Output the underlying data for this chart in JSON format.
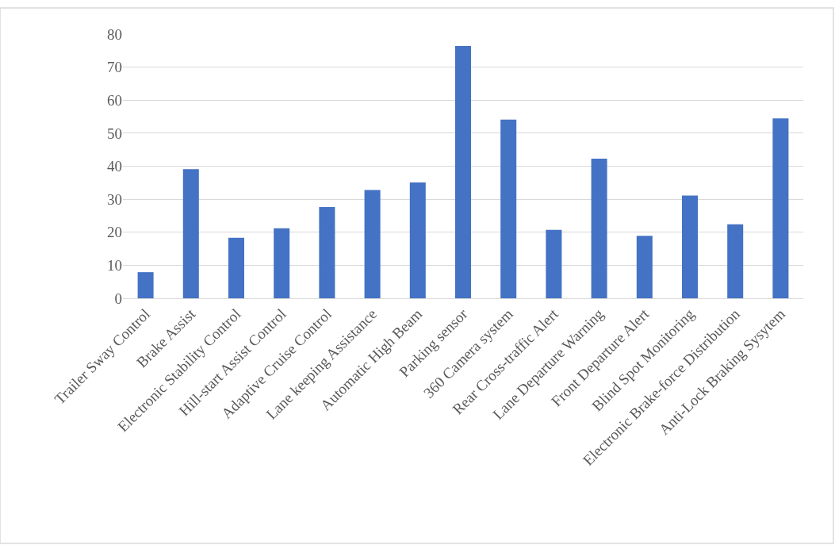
{
  "chart_data": {
    "type": "bar",
    "categories": [
      "Trailer Sway Control",
      "Brake Assist",
      "Electronic Stability Control",
      "Hill-start Assist Control",
      "Adaptive Cruise Control",
      "Lane keeping Assistance",
      "Automatic High Beam",
      "Parking sensor",
      "360 Camera system",
      "Rear Cross-traffic Alert",
      "Lane Departure Warning",
      "Front Departure Alert",
      "Blind Spot Monitoring",
      "Electronic Brake-force Distribution",
      "Anti-Lock Braking Sysytem"
    ],
    "values": [
      7.9,
      39.1,
      18.3,
      21.2,
      27.6,
      32.8,
      35.1,
      76.4,
      54.1,
      20.7,
      42.3,
      18.9,
      31.1,
      22.4,
      54.5
    ],
    "color": "#4472c4",
    "ylim": [
      0,
      80
    ],
    "yticks": [
      0,
      10,
      20,
      30,
      40,
      50,
      60,
      70,
      80
    ],
    "grid": "y",
    "legend": false
  }
}
